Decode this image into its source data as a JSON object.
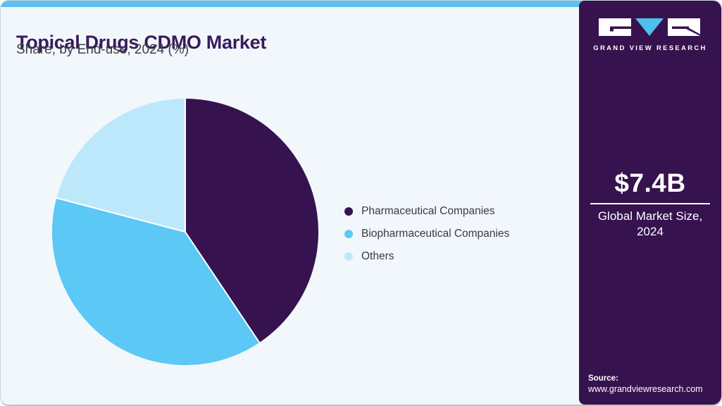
{
  "header": {
    "title": "Topical Drugs CDMO Market",
    "subtitle": "Share, by End-use, 2024 (%)"
  },
  "chart_data": {
    "type": "pie",
    "title": "Topical Drugs CDMO Market Share, by End-use, 2024 (%)",
    "unit": "%",
    "start_angle_deg": 0,
    "direction": "clockwise",
    "legend_position": "right",
    "values_shown_on_chart": false,
    "series": [
      {
        "name": "Pharmaceutical Companies",
        "value": 40.6,
        "color": "#36124e"
      },
      {
        "name": "Biopharmaceutical Companies",
        "value": 38.5,
        "color": "#5bc8f5"
      },
      {
        "name": "Others",
        "value": 20.9,
        "color": "#bde8fb"
      }
    ]
  },
  "sidebar": {
    "brand": "GRAND VIEW RESEARCH",
    "market_size": "$7.4B",
    "market_label": "Global Market Size, 2024",
    "source_label": "Source:",
    "source_url": "www.grandviewresearch.com"
  },
  "colors": {
    "accent_strip": "#5bc2ee",
    "card_bg": "#f2f7fb",
    "sidebar_bg": "#36124e",
    "title": "#3a1b5d",
    "logo_triangle": "#4fc0ee",
    "slice_separator": "#ffffff"
  }
}
